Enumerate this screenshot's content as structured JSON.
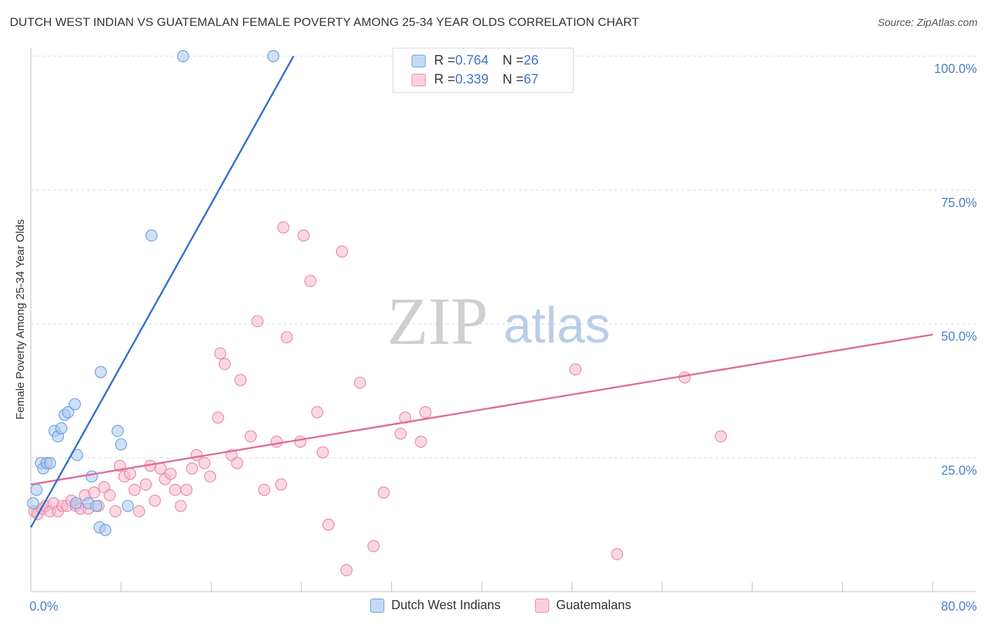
{
  "title": "DUTCH WEST INDIAN VS GUATEMALAN FEMALE POVERTY AMONG 25-34 YEAR OLDS CORRELATION CHART",
  "source": "Source: ZipAtlas.com",
  "watermark": {
    "zip": "ZIP",
    "atlas": "atlas"
  },
  "colors": {
    "blue_fill": "#a8c8f0",
    "blue_stroke": "#6f9fdc",
    "blue_line": "#2f6fc8",
    "pink_fill": "#f5b8cb",
    "pink_stroke": "#e88aa8",
    "pink_line": "#e06b96",
    "tick_text": "#4a7fcf"
  },
  "legend": {
    "rows": [
      {
        "r_label": "R = ",
        "r_value": "0.764",
        "n_label": "N = ",
        "n_value": "26",
        "color": "#a8c8f0"
      },
      {
        "r_label": "R = ",
        "r_value": "0.339",
        "n_label": "N = ",
        "n_value": "67",
        "color": "#f5b8cb"
      }
    ]
  },
  "bottom_legend": [
    {
      "label": "Dutch West Indians",
      "color": "#a8c8f0"
    },
    {
      "label": "Guatemalans",
      "color": "#f5b8cb"
    }
  ],
  "chart_data": {
    "type": "scatter",
    "title": "DUTCH WEST INDIAN VS GUATEMALAN FEMALE POVERTY AMONG 25-34 YEAR OLDS CORRELATION CHART",
    "xlabel": "",
    "ylabel": "Female Poverty Among 25-34 Year Olds",
    "xlim": [
      0,
      80
    ],
    "ylim": [
      0,
      100
    ],
    "x_tick_labels": [
      "0.0%",
      "80.0%"
    ],
    "y_ticks": [
      25,
      50,
      75,
      100
    ],
    "y_tick_labels": [
      "25.0%",
      "50.0%",
      "75.0%",
      "100.0%"
    ],
    "grid": true,
    "legend_position": "top-center",
    "series": [
      {
        "name": "Dutch West Indians",
        "r": 0.764,
        "n": 26,
        "trend": [
          [
            0.0,
            12.0
          ],
          [
            23.3,
            100.0
          ]
        ],
        "points": [
          [
            0.2,
            16.5
          ],
          [
            0.5,
            19.0
          ],
          [
            0.9,
            24.0
          ],
          [
            1.1,
            23.0
          ],
          [
            1.4,
            24.0
          ],
          [
            1.7,
            24.0
          ],
          [
            2.1,
            30.0
          ],
          [
            2.4,
            29.0
          ],
          [
            2.7,
            30.5
          ],
          [
            3.0,
            33.0
          ],
          [
            3.3,
            33.5
          ],
          [
            3.9,
            35.0
          ],
          [
            4.1,
            25.5
          ],
          [
            5.1,
            16.5
          ],
          [
            5.4,
            21.5
          ],
          [
            5.8,
            16.0
          ],
          [
            6.1,
            12.0
          ],
          [
            6.2,
            41.0
          ],
          [
            6.6,
            11.5
          ],
          [
            7.7,
            30.0
          ],
          [
            8.0,
            27.5
          ],
          [
            8.6,
            16.0
          ],
          [
            10.7,
            66.5
          ],
          [
            13.5,
            100.0
          ],
          [
            21.5,
            100.0
          ],
          [
            4.0,
            16.5
          ]
        ]
      },
      {
        "name": "Guatemalans",
        "r": 0.339,
        "n": 67,
        "trend": [
          [
            0.0,
            20.0
          ],
          [
            80.0,
            48.0
          ]
        ],
        "points": [
          [
            0.3,
            15.0
          ],
          [
            0.6,
            14.5
          ],
          [
            1.0,
            15.5
          ],
          [
            1.3,
            16.0
          ],
          [
            1.7,
            15.0
          ],
          [
            2.0,
            16.5
          ],
          [
            2.4,
            15.0
          ],
          [
            2.8,
            16.0
          ],
          [
            3.2,
            16.0
          ],
          [
            3.6,
            17.0
          ],
          [
            4.0,
            16.0
          ],
          [
            4.4,
            15.5
          ],
          [
            4.8,
            18.0
          ],
          [
            5.1,
            15.5
          ],
          [
            5.6,
            18.5
          ],
          [
            6.0,
            16.0
          ],
          [
            6.5,
            19.5
          ],
          [
            7.0,
            18.0
          ],
          [
            7.5,
            15.0
          ],
          [
            7.9,
            23.5
          ],
          [
            8.3,
            21.5
          ],
          [
            8.8,
            22.0
          ],
          [
            9.2,
            19.0
          ],
          [
            9.6,
            15.0
          ],
          [
            10.2,
            20.0
          ],
          [
            10.6,
            23.5
          ],
          [
            11.0,
            17.0
          ],
          [
            11.5,
            23.0
          ],
          [
            11.9,
            21.0
          ],
          [
            12.4,
            22.0
          ],
          [
            12.8,
            19.0
          ],
          [
            13.3,
            16.0
          ],
          [
            13.8,
            19.0
          ],
          [
            14.3,
            23.0
          ],
          [
            14.7,
            25.5
          ],
          [
            15.4,
            24.0
          ],
          [
            15.9,
            21.5
          ],
          [
            16.6,
            32.5
          ],
          [
            16.8,
            44.5
          ],
          [
            17.2,
            42.5
          ],
          [
            17.8,
            25.5
          ],
          [
            18.3,
            24.0
          ],
          [
            18.6,
            39.5
          ],
          [
            19.5,
            29.0
          ],
          [
            20.1,
            50.5
          ],
          [
            20.7,
            19.0
          ],
          [
            21.8,
            28.0
          ],
          [
            22.2,
            20.0
          ],
          [
            22.4,
            68.0
          ],
          [
            22.7,
            47.5
          ],
          [
            23.9,
            28.0
          ],
          [
            24.2,
            66.5
          ],
          [
            24.8,
            58.0
          ],
          [
            25.4,
            33.5
          ],
          [
            25.9,
            26.0
          ],
          [
            26.4,
            12.5
          ],
          [
            27.6,
            63.5
          ],
          [
            28.0,
            4.0
          ],
          [
            29.2,
            39.0
          ],
          [
            30.4,
            8.5
          ],
          [
            31.3,
            18.5
          ],
          [
            32.8,
            29.5
          ],
          [
            33.2,
            32.5
          ],
          [
            34.6,
            28.0
          ],
          [
            35.0,
            33.5
          ],
          [
            48.3,
            41.5
          ],
          [
            52.0,
            7.0
          ]
        ]
      }
    ],
    "extra_points": [
      [
        58.0,
        40.0
      ],
      [
        61.2,
        29.0
      ]
    ]
  }
}
